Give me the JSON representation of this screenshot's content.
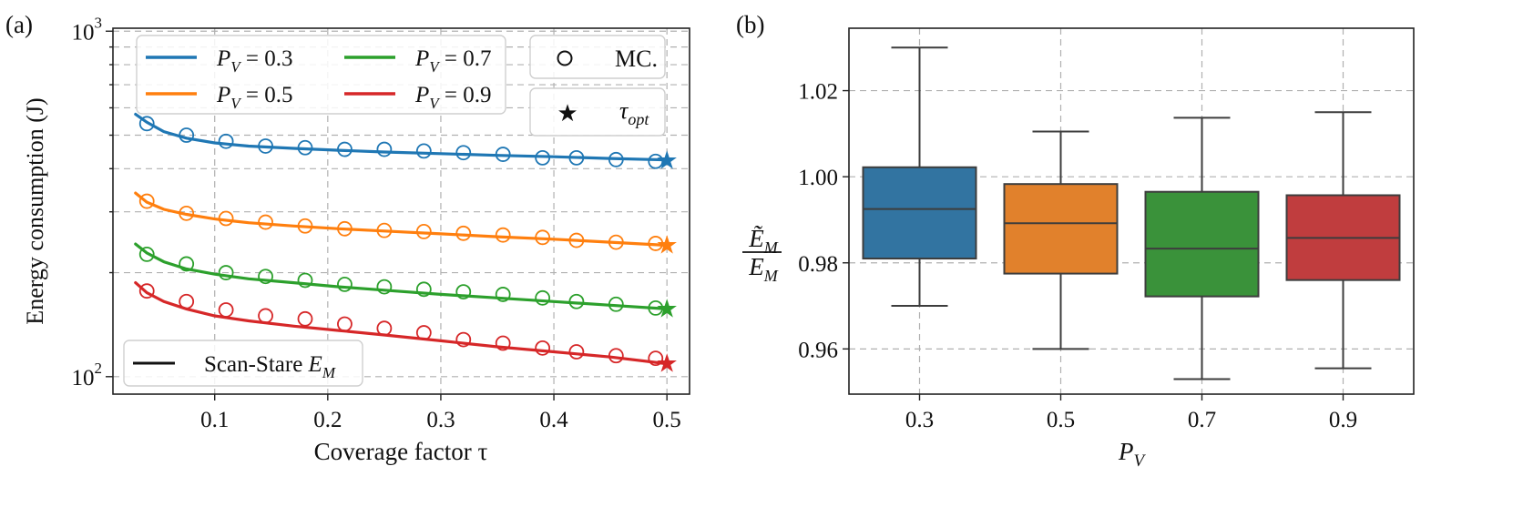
{
  "chart_data": [
    {
      "panel_label": "(a)",
      "type": "line",
      "xlabel": "Coverage factor τ",
      "ylabel": "Energy consumption (J)",
      "yscale": "log",
      "xlim": [
        0.01,
        0.52
      ],
      "ylim": [
        89,
        1020
      ],
      "xticks": [
        0.1,
        0.2,
        0.3,
        0.4,
        0.5
      ],
      "xtick_labels": [
        "0.1",
        "0.2",
        "0.3",
        "0.4",
        "0.5"
      ],
      "yticks_major": [
        100,
        1000
      ],
      "ytick_labels": [
        {
          "base": "10",
          "exp": "2"
        },
        {
          "base": "10",
          "exp": "3"
        }
      ],
      "yticks_minor": [
        200,
        300,
        400,
        500,
        600,
        700,
        800,
        900
      ],
      "grid": true,
      "series": [
        {
          "name": "P_V = 0.3",
          "label_main": "P",
          "label_sub": "V",
          "label_value": " = 0.3",
          "color": "#1f77b4",
          "curve_x": [
            0.03,
            0.04,
            0.055,
            0.075,
            0.1,
            0.13,
            0.17,
            0.21,
            0.25,
            0.3,
            0.35,
            0.4,
            0.45,
            0.5
          ],
          "curve_y": [
            575,
            545,
            512,
            490,
            475,
            465,
            458,
            452,
            447,
            442,
            437,
            433,
            428,
            424
          ],
          "mc_x": [
            0.04,
            0.075,
            0.11,
            0.145,
            0.18,
            0.215,
            0.25,
            0.285,
            0.32,
            0.355,
            0.39,
            0.42,
            0.455,
            0.49
          ],
          "mc_y": [
            540,
            500,
            480,
            465,
            460,
            455,
            455,
            450,
            445,
            440,
            430,
            430,
            425,
            420
          ],
          "opt_x": 0.5,
          "opt_y": 422
        },
        {
          "name": "P_V = 0.5",
          "label_main": "P",
          "label_sub": "V",
          "label_value": " = 0.5",
          "color": "#ff7f0e",
          "curve_x": [
            0.03,
            0.04,
            0.055,
            0.075,
            0.1,
            0.13,
            0.17,
            0.21,
            0.25,
            0.3,
            0.35,
            0.4,
            0.45,
            0.5
          ],
          "curve_y": [
            340,
            320,
            305,
            295,
            286,
            279,
            273,
            268,
            264,
            259,
            254,
            250,
            245,
            240
          ],
          "mc_x": [
            0.04,
            0.075,
            0.11,
            0.145,
            0.18,
            0.215,
            0.25,
            0.285,
            0.32,
            0.355,
            0.39,
            0.42,
            0.455,
            0.49
          ],
          "mc_y": [
            322,
            297,
            287,
            280,
            273,
            268,
            265,
            263,
            260,
            257,
            253,
            248,
            245,
            243
          ],
          "opt_x": 0.5,
          "opt_y": 240
        },
        {
          "name": "P_V = 0.7",
          "label_main": "P",
          "label_sub": "V",
          "label_value": " = 0.7",
          "color": "#2ca02c",
          "curve_x": [
            0.03,
            0.04,
            0.055,
            0.075,
            0.1,
            0.13,
            0.17,
            0.21,
            0.25,
            0.3,
            0.35,
            0.4,
            0.45,
            0.5
          ],
          "curve_y": [
            242,
            228,
            215,
            205,
            198,
            192,
            187,
            182,
            178,
            173,
            169,
            165,
            161,
            157
          ],
          "mc_x": [
            0.04,
            0.075,
            0.11,
            0.145,
            0.18,
            0.215,
            0.25,
            0.285,
            0.32,
            0.355,
            0.39,
            0.42,
            0.455,
            0.49
          ],
          "mc_y": [
            226,
            212,
            200,
            195,
            190,
            185,
            182,
            179,
            176,
            173,
            169,
            165,
            162,
            158
          ],
          "opt_x": 0.5,
          "opt_y": 157
        },
        {
          "name": "P_V = 0.9",
          "label_main": "P",
          "label_sub": "V",
          "label_value": " = 0.9",
          "color": "#d62728",
          "curve_x": [
            0.03,
            0.04,
            0.055,
            0.075,
            0.1,
            0.13,
            0.17,
            0.21,
            0.25,
            0.3,
            0.35,
            0.4,
            0.45,
            0.5
          ],
          "curve_y": [
            187,
            175,
            165,
            157,
            150,
            145,
            140,
            136,
            132,
            127,
            122,
            118,
            114,
            109
          ],
          "mc_x": [
            0.04,
            0.075,
            0.11,
            0.145,
            0.18,
            0.215,
            0.25,
            0.285,
            0.32,
            0.355,
            0.39,
            0.42,
            0.455,
            0.49
          ],
          "mc_y": [
            177,
            165,
            156,
            150,
            147,
            142,
            138,
            134,
            128,
            125,
            121,
            118,
            115,
            113
          ],
          "opt_x": 0.5,
          "opt_y": 109
        }
      ],
      "legend_mc": "MC.",
      "legend_opt": {
        "main": "τ",
        "sub": "opt"
      },
      "legend_curve": {
        "main": "Scan-Stare ",
        "var": "E",
        "sub": "M"
      }
    },
    {
      "panel_label": "(b)",
      "type": "box",
      "xlabel": {
        "main": "P",
        "sub": "V"
      },
      "ylabel": {
        "num": "Ẽ",
        "num_sub": "M",
        "den": "E",
        "den_sub": "M"
      },
      "ylim": [
        0.9495,
        1.0345
      ],
      "yticks": [
        0.96,
        0.98,
        1.0,
        1.02
      ],
      "ytick_labels": [
        "0.96",
        "0.98",
        "1.00",
        "1.02"
      ],
      "grid": true,
      "categories": [
        "0.3",
        "0.5",
        "0.7",
        "0.9"
      ],
      "boxes": [
        {
          "whisker_low": 0.97,
          "q1": 0.981,
          "median": 0.9925,
          "q3": 1.0022,
          "whisker_high": 1.03,
          "color": "#3274a1"
        },
        {
          "whisker_low": 0.96,
          "q1": 0.9775,
          "median": 0.9892,
          "q3": 0.9983,
          "whisker_high": 1.0105,
          "color": "#e1812c"
        },
        {
          "whisker_low": 0.953,
          "q1": 0.9722,
          "median": 0.9833,
          "q3": 0.9965,
          "whisker_high": 1.0137,
          "color": "#3a923a"
        },
        {
          "whisker_low": 0.9555,
          "q1": 0.976,
          "median": 0.9858,
          "q3": 0.9957,
          "whisker_high": 1.015,
          "color": "#c03d3e"
        }
      ]
    }
  ]
}
